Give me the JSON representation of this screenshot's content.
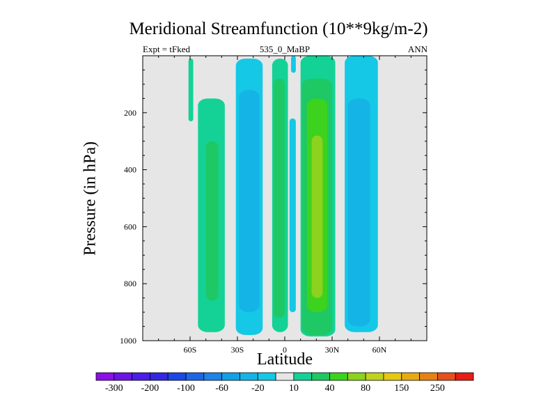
{
  "chart_data": {
    "type": "heatmap",
    "title": "Meridional Streamfunction (10**9kg/m-2)",
    "left_string": "Expt = tFked",
    "center_string": "535_0_MaBP",
    "right_string": "ANN",
    "xlabel": "Latitude",
    "ylabel": "Pressure (in hPa)",
    "xlim": [
      -90,
      90
    ],
    "ylim": [
      1000,
      0
    ],
    "x_ticks": [
      -60,
      -30,
      0,
      30,
      60
    ],
    "x_tick_labels": [
      "60S",
      "30S",
      "0",
      "30N",
      "60N"
    ],
    "y_ticks": [
      200,
      400,
      600,
      800,
      1000
    ],
    "y_tick_labels": [
      "200",
      "400",
      "600",
      "800",
      "1000"
    ],
    "background_color": "#e6e6e6",
    "colorbar": {
      "levels": [
        -300,
        -250,
        -200,
        -150,
        -100,
        -80,
        -60,
        -40,
        -20,
        -10,
        10,
        20,
        40,
        60,
        80,
        100,
        150,
        200,
        250,
        300
      ],
      "labels": [
        "-300",
        "-200",
        "-100",
        "-60",
        "-20",
        "10",
        "40",
        "80",
        "150",
        "250"
      ],
      "colors": [
        "#8c0fe6",
        "#6a14e6",
        "#4a1ee6",
        "#3228e0",
        "#1e46e6",
        "#1e64e6",
        "#1e82e6",
        "#14a0e6",
        "#14b4e6",
        "#14c8e6",
        "#e6e6e6",
        "#14d296",
        "#1ec864",
        "#3cd21e",
        "#8cd21e",
        "#bed21e",
        "#e6c814",
        "#e6aa14",
        "#e68214",
        "#e6501e",
        "#e61e14"
      ]
    },
    "cells": [
      {
        "lat": [
          -61,
          -58
        ],
        "p": [
          10,
          230
        ],
        "value": 15
      },
      {
        "lat": [
          -55,
          -38
        ],
        "p": [
          150,
          970
        ],
        "value": 15
      },
      {
        "lat": [
          -50,
          -42
        ],
        "p": [
          300,
          860
        ],
        "value": 30
      },
      {
        "lat": [
          -31,
          -14
        ],
        "p": [
          10,
          980
        ],
        "value": -15
      },
      {
        "lat": [
          -29,
          -16
        ],
        "p": [
          120,
          900
        ],
        "value": -25
      },
      {
        "lat": [
          -26,
          -20
        ],
        "p": [
          220,
          520
        ],
        "value": -35
      },
      {
        "lat": [
          -8,
          2
        ],
        "p": [
          10,
          970
        ],
        "value": 15
      },
      {
        "lat": [
          -7,
          0
        ],
        "p": [
          80,
          920
        ],
        "value": 30
      },
      {
        "lat": [
          3,
          7
        ],
        "p": [
          220,
          900
        ],
        "value": -15
      },
      {
        "lat": [
          4,
          7
        ],
        "p": [
          0,
          60
        ],
        "value": -15
      },
      {
        "lat": [
          10,
          32
        ],
        "p": [
          0,
          985
        ],
        "value": 15
      },
      {
        "lat": [
          11,
          30
        ],
        "p": [
          80,
          980
        ],
        "value": 30
      },
      {
        "lat": [
          14,
          27
        ],
        "p": [
          150,
          900
        ],
        "value": 50
      },
      {
        "lat": [
          17,
          24
        ],
        "p": [
          280,
          850
        ],
        "value": 70
      },
      {
        "lat": [
          38,
          59
        ],
        "p": [
          0,
          970
        ],
        "value": -15
      },
      {
        "lat": [
          40,
          54
        ],
        "p": [
          150,
          950
        ],
        "value": -25
      }
    ]
  }
}
